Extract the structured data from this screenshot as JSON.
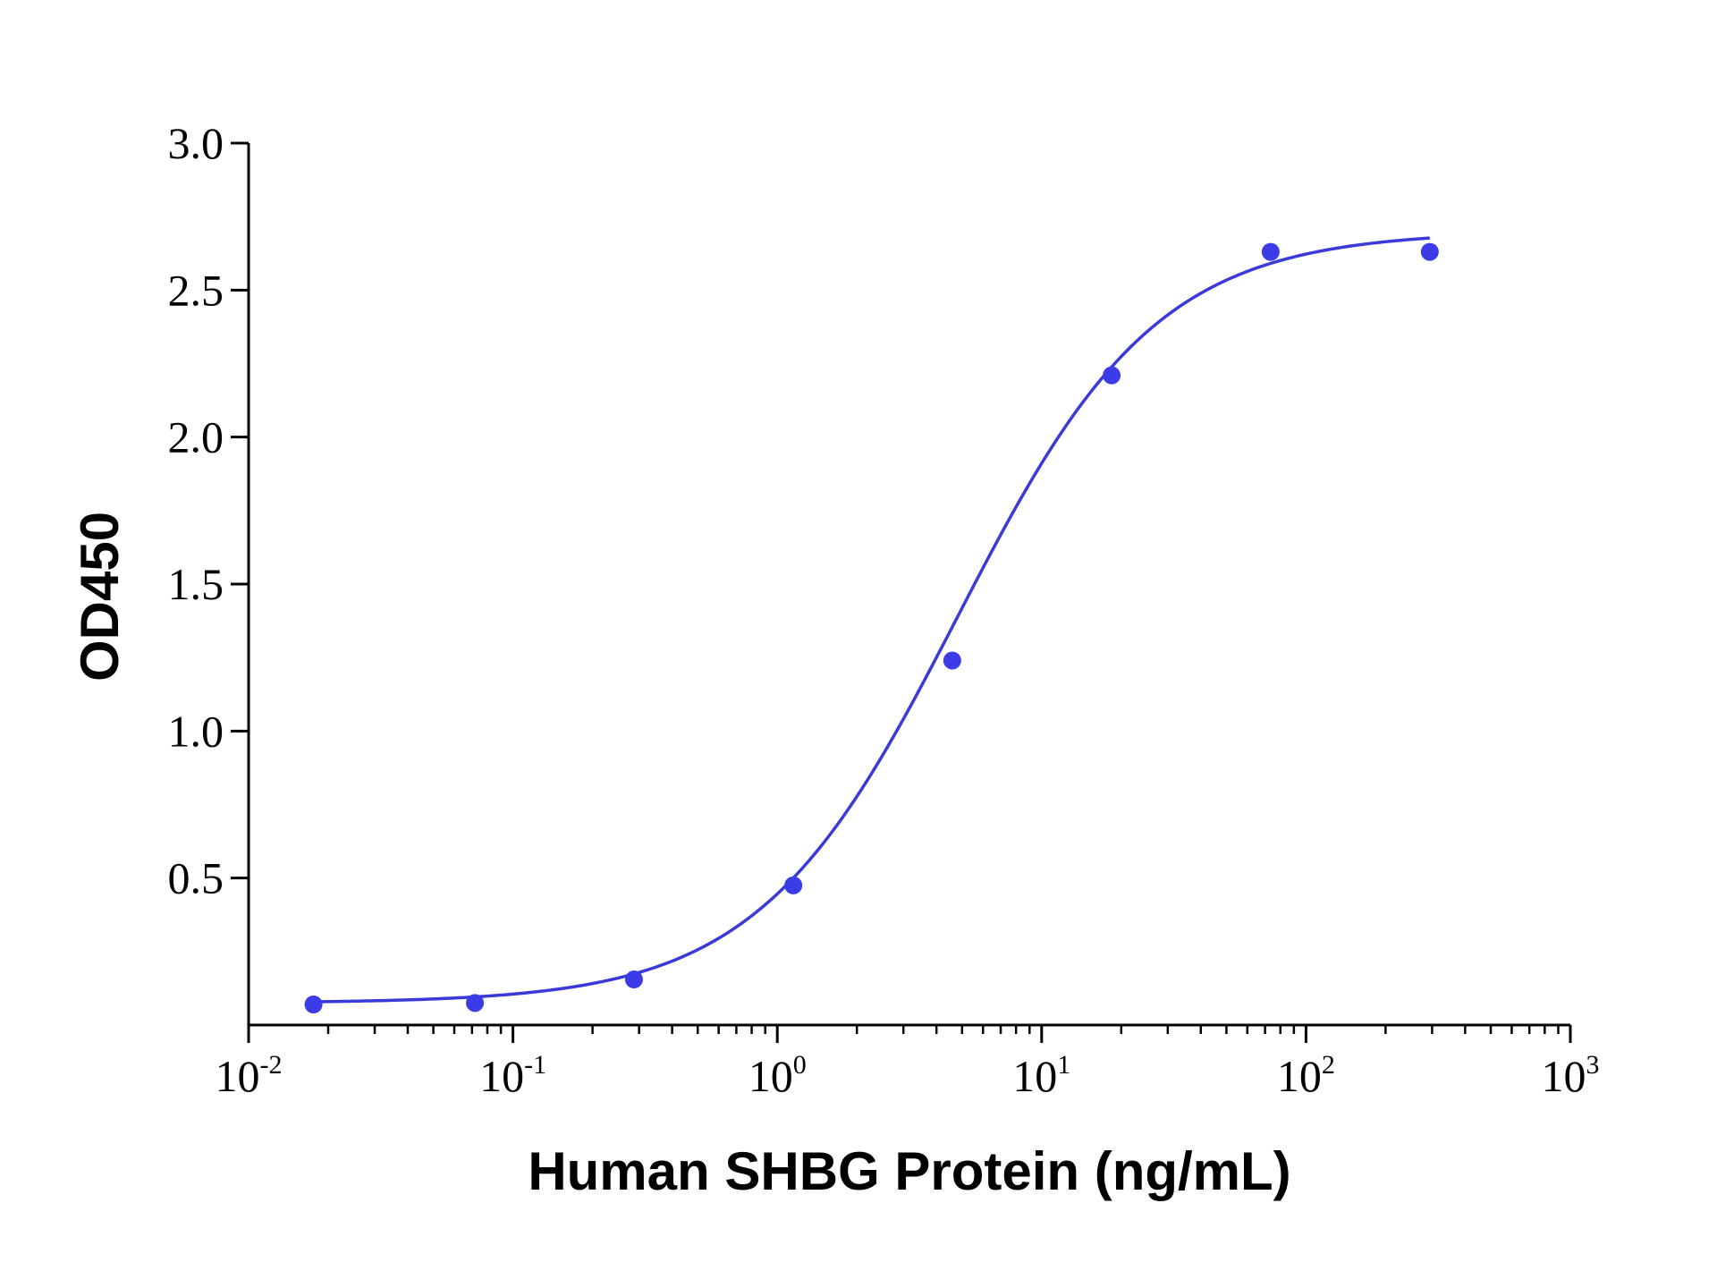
{
  "chart_data": {
    "type": "scatter",
    "xlabel": "Human SHBG Protein (ng/mL)",
    "ylabel": "OD450",
    "xscale": "log",
    "xlim": [
      0.01,
      1000
    ],
    "ylim": [
      0,
      3.0
    ],
    "x_ticks": [
      {
        "base": "10",
        "exp": "-2",
        "value": 0.01
      },
      {
        "base": "10",
        "exp": "-1",
        "value": 0.1
      },
      {
        "base": "10",
        "exp": "0",
        "value": 1
      },
      {
        "base": "10",
        "exp": "1",
        "value": 10
      },
      {
        "base": "10",
        "exp": "2",
        "value": 100
      },
      {
        "base": "10",
        "exp": "3",
        "value": 1000
      }
    ],
    "y_ticks": [
      "0.5",
      "1.0",
      "1.5",
      "2.0",
      "2.5",
      "3.0"
    ],
    "grid": false,
    "series": [
      {
        "color": "#3b3be8",
        "points": [
          {
            "x": 0.0176,
            "y": 0.07
          },
          {
            "x": 0.0718,
            "y": 0.075
          },
          {
            "x": 0.287,
            "y": 0.155
          },
          {
            "x": 1.15,
            "y": 0.475
          },
          {
            "x": 4.59,
            "y": 1.24
          },
          {
            "x": 18.4,
            "y": 2.21
          },
          {
            "x": 73.5,
            "y": 2.63
          },
          {
            "x": 294,
            "y": 2.63
          }
        ],
        "fit": {
          "model": "4PL",
          "bottom": 0.075,
          "top": 2.7,
          "ec50": 4.8,
          "hill": 1.15,
          "x_range": [
            0.0176,
            294
          ]
        }
      }
    ]
  }
}
